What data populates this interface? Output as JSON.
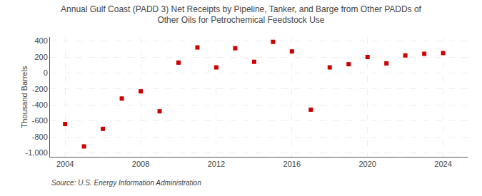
{
  "chart_data": {
    "type": "scatter",
    "title": "Annual Gulf Coast (PADD 3) Net Receipts by Pipeline, Tanker, and Barge from Other PADDs of\nOther Oils for Petrochemical Feedstock Use",
    "ylabel": "Thousand Barrels",
    "annotations": [
      "Source: U.S. Energy Information Administration"
    ],
    "x": [
      2004,
      2005,
      2006,
      2007,
      2008,
      2009,
      2010,
      2011,
      2012,
      2013,
      2014,
      2015,
      2016,
      2017,
      2018,
      2019,
      2020,
      2021,
      2022,
      2023,
      2024
    ],
    "values": [
      -640,
      -920,
      -700,
      -320,
      -230,
      -480,
      130,
      320,
      70,
      310,
      140,
      390,
      270,
      -460,
      70,
      110,
      200,
      120,
      220,
      240,
      250
    ],
    "color": "#cc0000",
    "marker": "square",
    "grid": true,
    "xlim": [
      2003.2,
      2025.3
    ],
    "ylim": [
      -1050,
      450
    ],
    "xticks": [
      2004,
      2008,
      2012,
      2016,
      2020,
      2024
    ],
    "yticks": [
      {
        "value": -1000,
        "label": "-1,000"
      },
      -800,
      -600,
      -400,
      -200,
      0,
      200,
      400
    ]
  }
}
